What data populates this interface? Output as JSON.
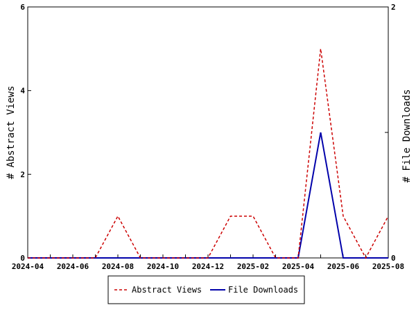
{
  "chart_data": {
    "type": "line",
    "x_type": "month",
    "x": [
      "2024-04",
      "2024-05",
      "2024-06",
      "2024-07",
      "2024-08",
      "2024-09",
      "2024-10",
      "2024-11",
      "2024-12",
      "2025-01",
      "2025-02",
      "2025-03",
      "2025-04",
      "2025-05",
      "2025-06",
      "2025-07",
      "2025-08"
    ],
    "xticks": [
      "2024-04",
      "2024-06",
      "2024-08",
      "2024-10",
      "2024-12",
      "2025-02",
      "2025-04",
      "2025-06",
      "2025-08"
    ],
    "series": [
      {
        "name": "Abstract Views",
        "axis": "left",
        "color": "#cc0000",
        "dash": "dashed",
        "values": [
          0,
          0,
          0,
          0,
          1,
          0,
          0,
          0,
          0,
          1,
          1,
          0,
          0,
          5,
          1,
          0,
          1
        ]
      },
      {
        "name": "File Downloads",
        "axis": "right",
        "color": "#0000aa",
        "dash": "solid",
        "values": [
          0,
          0,
          0,
          0,
          0,
          0,
          0,
          0,
          0,
          0,
          0,
          0,
          0,
          1,
          0,
          0,
          0
        ]
      }
    ],
    "ylabel_left": "# Abstract Views",
    "ylabel_right": "# File Downloads",
    "ylim_left": [
      0,
      6
    ],
    "yticks_left": [
      0,
      2,
      4,
      6
    ],
    "ylim_right": [
      0,
      2
    ],
    "yticks_right": [
      0,
      1,
      2
    ],
    "yticklabels_right": [
      "0",
      "",
      "2"
    ],
    "legend_position": "bottom-center",
    "grid": false
  }
}
